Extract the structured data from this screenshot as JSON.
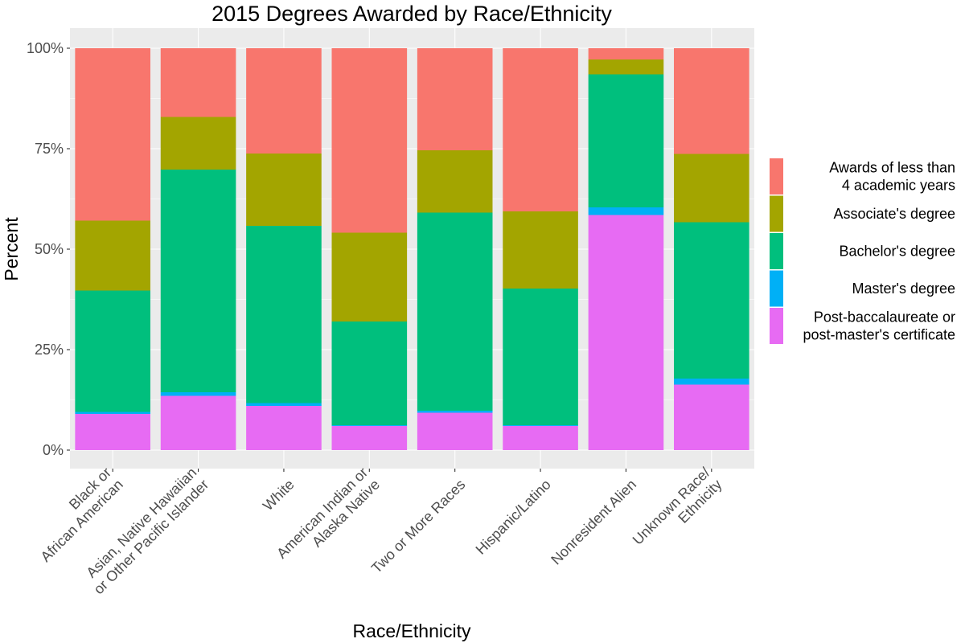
{
  "chart_data": {
    "type": "bar",
    "stacked": true,
    "percent": true,
    "title": "2015 Degrees Awarded by Race/Ethnicity",
    "xlabel": "Race/Ethnicity",
    "ylabel": "Percent",
    "ylim": [
      0,
      1
    ],
    "y_ticks": [
      "0%",
      "25%",
      "50%",
      "75%",
      "100%"
    ],
    "categories": [
      "Black or African American",
      "Asian, Native Hawaiian or Other Pacific Islander",
      "White",
      "American Indian or Alaska Native",
      "Two or More Races",
      "Hispanic/Latino",
      "Nonresident Alien",
      "Unknown Race/ Ethnicity"
    ],
    "category_label_lines": [
      [
        "Black or",
        "African American"
      ],
      [
        "Asian, Native Hawaiian",
        "or Other Pacific Islander"
      ],
      [
        "White"
      ],
      [
        "American Indian or",
        "Alaska Native"
      ],
      [
        "Two or More Races"
      ],
      [
        "Hispanic/Latino"
      ],
      [
        "Nonresident Alien"
      ],
      [
        "Unknown Race/",
        "Ethnicity"
      ]
    ],
    "series": [
      {
        "name": "Post-baccalaureate or post-master's certificate",
        "legend_lines": [
          "Post-baccalaureate or",
          "post-master's certificate"
        ],
        "color": "#E76BF3",
        "values": [
          0.09,
          0.135,
          0.11,
          0.06,
          0.093,
          0.06,
          0.585,
          0.163
        ]
      },
      {
        "name": "Master's degree",
        "legend_lines": [
          "Master's degree"
        ],
        "color": "#00B0F6",
        "values": [
          0.005,
          0.009,
          0.007,
          0.002,
          0.005,
          0.002,
          0.019,
          0.015
        ]
      },
      {
        "name": "Bachelor's degree",
        "legend_lines": [
          "Bachelor's degree"
        ],
        "color": "#00BF7D",
        "values": [
          0.302,
          0.554,
          0.441,
          0.258,
          0.493,
          0.34,
          0.331,
          0.389
        ]
      },
      {
        "name": "Associate's degree",
        "legend_lines": [
          "Associate's degree"
        ],
        "color": "#A3A500",
        "values": [
          0.174,
          0.131,
          0.18,
          0.221,
          0.155,
          0.192,
          0.037,
          0.17
        ]
      },
      {
        "name": "Awards of less than 4 academic years",
        "legend_lines": [
          "Awards of less than",
          "4 academic years"
        ],
        "color": "#F8766D",
        "values": [
          0.429,
          0.171,
          0.262,
          0.459,
          0.254,
          0.406,
          0.028,
          0.263
        ]
      }
    ],
    "legend_position": "right",
    "grid": true,
    "panel_color": "#EBEBEB"
  }
}
